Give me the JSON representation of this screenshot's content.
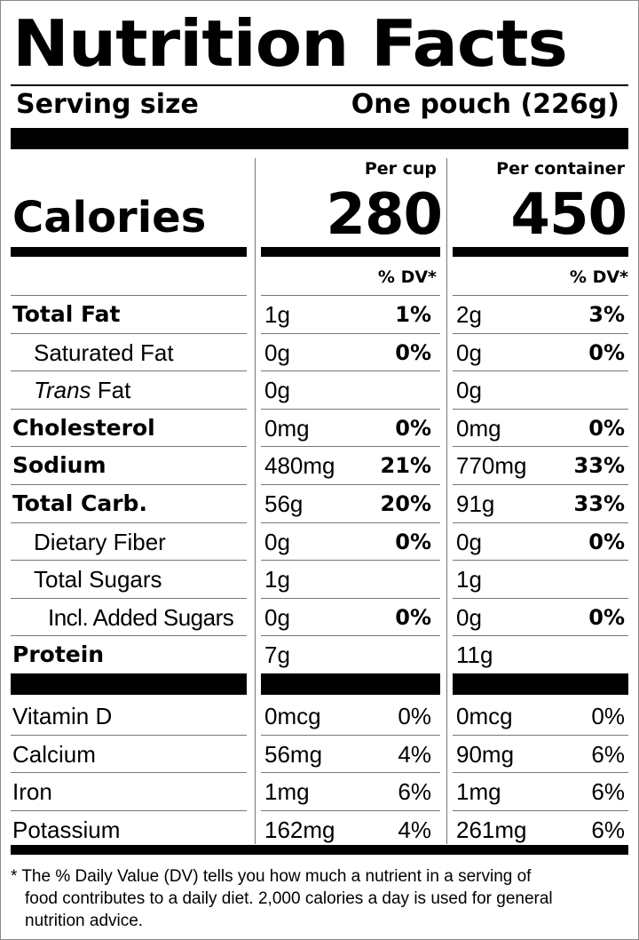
{
  "title": "Nutrition Facts",
  "serving": {
    "label": "Serving size",
    "value": "One pouch (226g)"
  },
  "columns": {
    "per_cup": "Per cup",
    "per_container": "Per container"
  },
  "calories": {
    "label": "Calories",
    "per_cup": "280",
    "per_container": "450"
  },
  "dv_header": "% DV*",
  "nutrients": [
    {
      "name": "Total Fat",
      "cup_amt": "1g",
      "cup_dv": "1%",
      "cont_amt": "2g",
      "cont_dv": "3%"
    },
    {
      "name": "Saturated Fat",
      "cup_amt": "0g",
      "cup_dv": "0%",
      "cont_amt": "0g",
      "cont_dv": "0%"
    },
    {
      "name_italic": "Trans",
      "name_rest": " Fat",
      "cup_amt": "0g",
      "cup_dv": "",
      "cont_amt": "0g",
      "cont_dv": ""
    },
    {
      "name": "Cholesterol",
      "cup_amt": "0mg",
      "cup_dv": "0%",
      "cont_amt": "0mg",
      "cont_dv": "0%"
    },
    {
      "name": "Sodium",
      "cup_amt": "480mg",
      "cup_dv": "21%",
      "cont_amt": "770mg",
      "cont_dv": "33%"
    },
    {
      "name": "Total Carb.",
      "cup_amt": "56g",
      "cup_dv": "20%",
      "cont_amt": "91g",
      "cont_dv": "33%"
    },
    {
      "name": "Dietary Fiber",
      "cup_amt": "0g",
      "cup_dv": "0%",
      "cont_amt": "0g",
      "cont_dv": "0%"
    },
    {
      "name": "Total Sugars",
      "cup_amt": "1g",
      "cup_dv": "",
      "cont_amt": "1g",
      "cont_dv": ""
    },
    {
      "name": "Incl. Added Sugars",
      "cup_amt": "0g",
      "cup_dv": "0%",
      "cont_amt": "0g",
      "cont_dv": "0%"
    },
    {
      "name": "Protein",
      "cup_amt": "7g",
      "cup_dv": "",
      "cont_amt": "11g",
      "cont_dv": ""
    }
  ],
  "vitamins": [
    {
      "name": "Vitamin D",
      "cup_amt": "0mcg",
      "cup_dv": "0%",
      "cont_amt": "0mcg",
      "cont_dv": "0%"
    },
    {
      "name": "Calcium",
      "cup_amt": "56mg",
      "cup_dv": "4%",
      "cont_amt": "90mg",
      "cont_dv": "6%"
    },
    {
      "name": "Iron",
      "cup_amt": "1mg",
      "cup_dv": "6%",
      "cont_amt": "1mg",
      "cont_dv": "6%"
    },
    {
      "name": "Potassium",
      "cup_amt": "162mg",
      "cup_dv": "4%",
      "cont_amt": "261mg",
      "cont_dv": "6%"
    }
  ],
  "footnote": {
    "line1": "* The % Daily Value (DV) tells you how much a nutrient in a serving of",
    "line2": "food contributes to a daily diet. 2,000 calories a day is used for general",
    "line3": "nutrition advice."
  }
}
